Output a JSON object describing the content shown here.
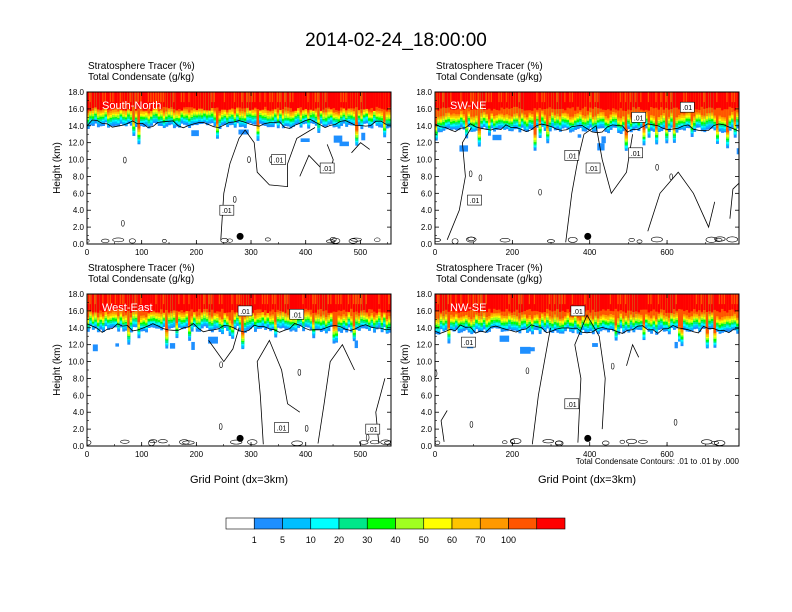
{
  "title": "2014-02-24_18:00:00",
  "fields": [
    "Stratosphere Tracer   (%)",
    "Total Condensate   (g/kg)"
  ],
  "contour_note": "Total Condensate Contours: .01 to .01 by .000",
  "colorbar": {
    "labels": [
      "1",
      "5",
      "10",
      "20",
      "30",
      "40",
      "50",
      "60",
      "70",
      "100"
    ],
    "colors": [
      "#ffffff",
      "#1e8fff",
      "#00bfff",
      "#00ffff",
      "#00e88a",
      "#00ff00",
      "#a0ff20",
      "#ffff00",
      "#ffc400",
      "#ff9900",
      "#ff5500",
      "#ff0000"
    ]
  },
  "chart_data": [
    {
      "type": "heatmap",
      "panel_label": "South-North",
      "ylabel": "Height (km)",
      "xlabel": "",
      "ylim": [
        0,
        18
      ],
      "xlim": [
        0,
        556
      ],
      "yticks": [
        "0.0",
        "2.0",
        "4.0",
        "6.0",
        "8.0",
        "10.0",
        "12.0",
        "14.0",
        "16.0",
        "18.0"
      ],
      "xticks": [
        0,
        100,
        200,
        300,
        400,
        500
      ],
      "contour_labels": [
        ".01",
        ".01",
        ".01"
      ],
      "marker_x": 280,
      "tracer_top_km": 16.0,
      "tracer_base_km": 14.0
    },
    {
      "type": "heatmap",
      "panel_label": "SW-NE",
      "ylabel": "Height (km)",
      "xlabel": "",
      "ylim": [
        0,
        18
      ],
      "xlim": [
        0,
        786
      ],
      "yticks": [
        "0.0",
        "2.0",
        "4.0",
        "6.0",
        "8.0",
        "10.0",
        "12.0",
        "14.0",
        "16.0",
        "18.0"
      ],
      "xticks": [
        0,
        200,
        400,
        600
      ],
      "contour_labels": [
        ".01",
        ".01",
        ".01",
        ".01",
        ".01",
        ".01"
      ],
      "marker_x": 395,
      "tracer_top_km": 16.0,
      "tracer_base_km": 13.5
    },
    {
      "type": "heatmap",
      "panel_label": "West-East",
      "ylabel": "Height (km)",
      "xlabel": "Grid Point (dx=3km)",
      "ylim": [
        0,
        18
      ],
      "xlim": [
        0,
        556
      ],
      "yticks": [
        "0.0",
        "2.0",
        "4.0",
        "6.0",
        "8.0",
        "10.0",
        "12.0",
        "14.0",
        "16.0",
        "18.0"
      ],
      "xticks": [
        0,
        100,
        200,
        300,
        400,
        500
      ],
      "contour_labels": [
        ".01",
        ".01",
        ".01",
        ".01"
      ],
      "marker_x": 280,
      "tracer_top_km": 16.0,
      "tracer_base_km": 13.8
    },
    {
      "type": "heatmap",
      "panel_label": "NW-SE",
      "ylabel": "Height (km)",
      "xlabel": "Grid Point (dx=3km)",
      "ylim": [
        0,
        18
      ],
      "xlim": [
        0,
        786
      ],
      "yticks": [
        "0.0",
        "2.0",
        "4.0",
        "6.0",
        "8.0",
        "10.0",
        "12.0",
        "14.0",
        "16.0",
        "18.0"
      ],
      "xticks": [
        0,
        200,
        400,
        600
      ],
      "contour_labels": [
        ".01",
        ".01",
        ".01"
      ],
      "marker_x": 395,
      "tracer_top_km": 16.0,
      "tracer_base_km": 13.6
    }
  ]
}
